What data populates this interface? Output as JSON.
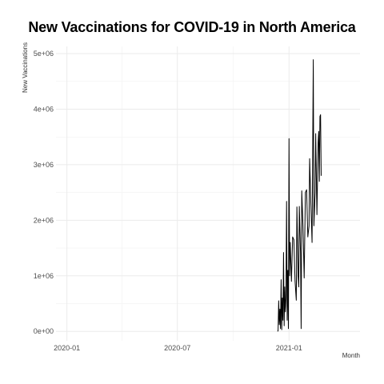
{
  "chart_data": {
    "type": "line",
    "title": "New Vaccinations for COVID-19 in North America",
    "xlabel": "Month",
    "ylabel": "New Vaccinations",
    "x_ticks": [
      "2020-01",
      "2020-07",
      "2021-01"
    ],
    "y_ticks": [
      "0e+00",
      "1e+06",
      "2e+06",
      "3e+06",
      "4e+06",
      "5e+06"
    ],
    "xlim": [
      "2019-12-14",
      "2021-04-28"
    ],
    "ylim": [
      -170000,
      5130000
    ],
    "grid": true,
    "line_color": "#000000",
    "series": [
      {
        "points": [
          [
            "2020-12-13",
            0
          ],
          [
            "2020-12-14",
            10000
          ],
          [
            "2020-12-15",
            550000
          ],
          [
            "2020-12-16",
            120000
          ],
          [
            "2020-12-17",
            400000
          ],
          [
            "2020-12-18",
            50000
          ],
          [
            "2020-12-19",
            930000
          ],
          [
            "2020-12-20",
            30000
          ],
          [
            "2020-12-21",
            600000
          ],
          [
            "2020-12-22",
            200000
          ],
          [
            "2020-12-23",
            1420000
          ],
          [
            "2020-12-24",
            100000
          ],
          [
            "2020-12-25",
            800000
          ],
          [
            "2020-12-26",
            350000
          ],
          [
            "2020-12-27",
            600000
          ],
          [
            "2020-12-28",
            2340000
          ],
          [
            "2020-12-29",
            200000
          ],
          [
            "2020-12-30",
            1100000
          ],
          [
            "2020-12-31",
            50000
          ],
          [
            "2021-01-01",
            3470000
          ],
          [
            "2021-01-02",
            1000000
          ],
          [
            "2021-01-03",
            1600000
          ],
          [
            "2021-01-05",
            900000
          ],
          [
            "2021-01-07",
            1700000
          ],
          [
            "2021-01-09",
            1650000
          ],
          [
            "2021-01-11",
            900000
          ],
          [
            "2021-01-13",
            560000
          ],
          [
            "2021-01-14",
            2240000
          ],
          [
            "2021-01-16",
            1000000
          ],
          [
            "2021-01-17",
            800000
          ],
          [
            "2021-01-18",
            2250000
          ],
          [
            "2021-01-20",
            1400000
          ],
          [
            "2021-01-21",
            50000
          ],
          [
            "2021-01-22",
            2530000
          ],
          [
            "2021-01-24",
            1900000
          ],
          [
            "2021-01-26",
            960000
          ],
          [
            "2021-01-28",
            2500000
          ],
          [
            "2021-01-30",
            2550000
          ],
          [
            "2021-02-01",
            1700000
          ],
          [
            "2021-02-03",
            1900000
          ],
          [
            "2021-02-04",
            3110000
          ],
          [
            "2021-02-06",
            2300000
          ],
          [
            "2021-02-08",
            1600000
          ],
          [
            "2021-02-10",
            4890000
          ],
          [
            "2021-02-11",
            1900000
          ],
          [
            "2021-02-13",
            2500000
          ],
          [
            "2021-02-14",
            3560000
          ],
          [
            "2021-02-16",
            2100000
          ],
          [
            "2021-02-18",
            3400000
          ],
          [
            "2021-02-19",
            3600000
          ],
          [
            "2021-02-20",
            2700000
          ],
          [
            "2021-02-21",
            3870000
          ],
          [
            "2021-02-22",
            3900000
          ],
          [
            "2021-02-23",
            2800000
          ]
        ]
      }
    ]
  }
}
